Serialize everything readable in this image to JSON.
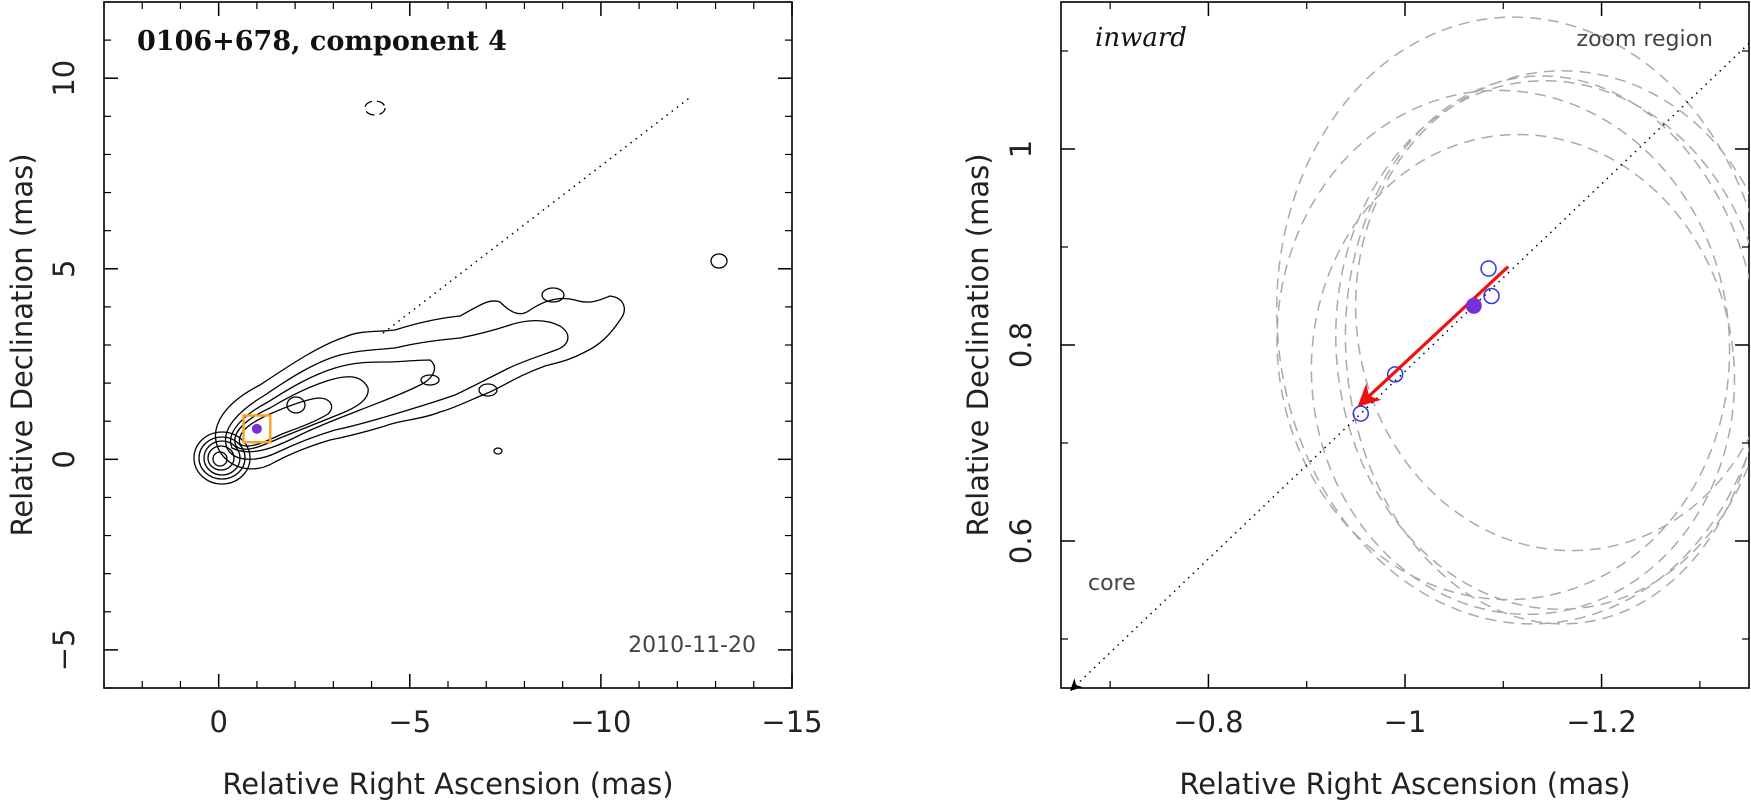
{
  "chart_data": [
    {
      "type": "scatter",
      "title": "0106+678, component 4",
      "annotation": "2010-11-20",
      "xlabel": "Relative Right Ascension (mas)",
      "ylabel": "Relative Declination (mas)",
      "xlim": [
        3,
        -15
      ],
      "ylim": [
        -6,
        12
      ],
      "xticks": [
        0,
        -5,
        -10,
        -15
      ],
      "xtick_labels": [
        "0",
        "−5",
        "−10",
        "−15"
      ],
      "yticks": [
        -5,
        0,
        5,
        10
      ],
      "ytick_labels": [
        "−5",
        "0",
        "5",
        "10"
      ],
      "jet_axis_through_origin_slope": -0.77,
      "core": {
        "x": 0,
        "y": 0
      },
      "component_marker": {
        "x": -1.0,
        "y": 0.8
      },
      "zoom_box": {
        "x_range": [
          -0.65,
          -1.35
        ],
        "y_range": [
          0.45,
          1.15
        ]
      },
      "isolated_contours": [
        {
          "x": -13.0,
          "y": 5.2
        },
        {
          "x": -4.2,
          "y": 9.2
        },
        {
          "x": -7.3,
          "y": 0.25
        }
      ],
      "colors": {
        "contour": "#000000",
        "zoom_box": "#f5a623",
        "component": "#7b2fd6"
      }
    },
    {
      "type": "scatter",
      "title": "inward",
      "annotation_right": "zoom region",
      "core_label": "core",
      "xlabel": "Relative Right Ascension (mas)",
      "ylabel": "Relative Declination (mas)",
      "xlim": [
        -0.65,
        -1.35
      ],
      "ylim": [
        0.45,
        1.15
      ],
      "xticks": [
        -0.8,
        -1,
        -1.2
      ],
      "xtick_labels": [
        "−0.8",
        "−1",
        "−1.2"
      ],
      "yticks": [
        0.6,
        0.8,
        1
      ],
      "ytick_labels": [
        "0.6",
        "0.8",
        "1"
      ],
      "epoch_positions": [
        {
          "x": -1.085,
          "y": 0.878
        },
        {
          "x": -1.088,
          "y": 0.85
        },
        {
          "x": -0.99,
          "y": 0.77
        },
        {
          "x": -0.955,
          "y": 0.73
        }
      ],
      "current_position": {
        "x": -1.07,
        "y": 0.84
      },
      "motion_vector": {
        "from": {
          "x": -1.105,
          "y": 0.88
        },
        "to": {
          "x": -0.955,
          "y": 0.74
        }
      },
      "beam_ellipses": [
        {
          "cx": -1.1,
          "cy": 0.8,
          "rx": 0.23,
          "ry": 0.26,
          "angle": -5
        },
        {
          "cx": -1.12,
          "cy": 0.77,
          "rx": 0.215,
          "ry": 0.245,
          "angle": -5
        },
        {
          "cx": -1.15,
          "cy": 0.795,
          "rx": 0.21,
          "ry": 0.28,
          "angle": -5
        },
        {
          "cx": -1.12,
          "cy": 0.825,
          "rx": 0.25,
          "ry": 0.31,
          "angle": -5
        },
        {
          "cx": -1.165,
          "cy": 0.835,
          "rx": 0.215,
          "ry": 0.245,
          "angle": -5
        },
        {
          "cx": -1.15,
          "cy": 0.8,
          "rx": 0.22,
          "ry": 0.27,
          "angle": -5
        }
      ],
      "colors": {
        "epoch": "#2b36e6",
        "current": "#7b2fd6",
        "arrow": "#ee1111",
        "ellipse": "#aaaaaa"
      }
    }
  ]
}
